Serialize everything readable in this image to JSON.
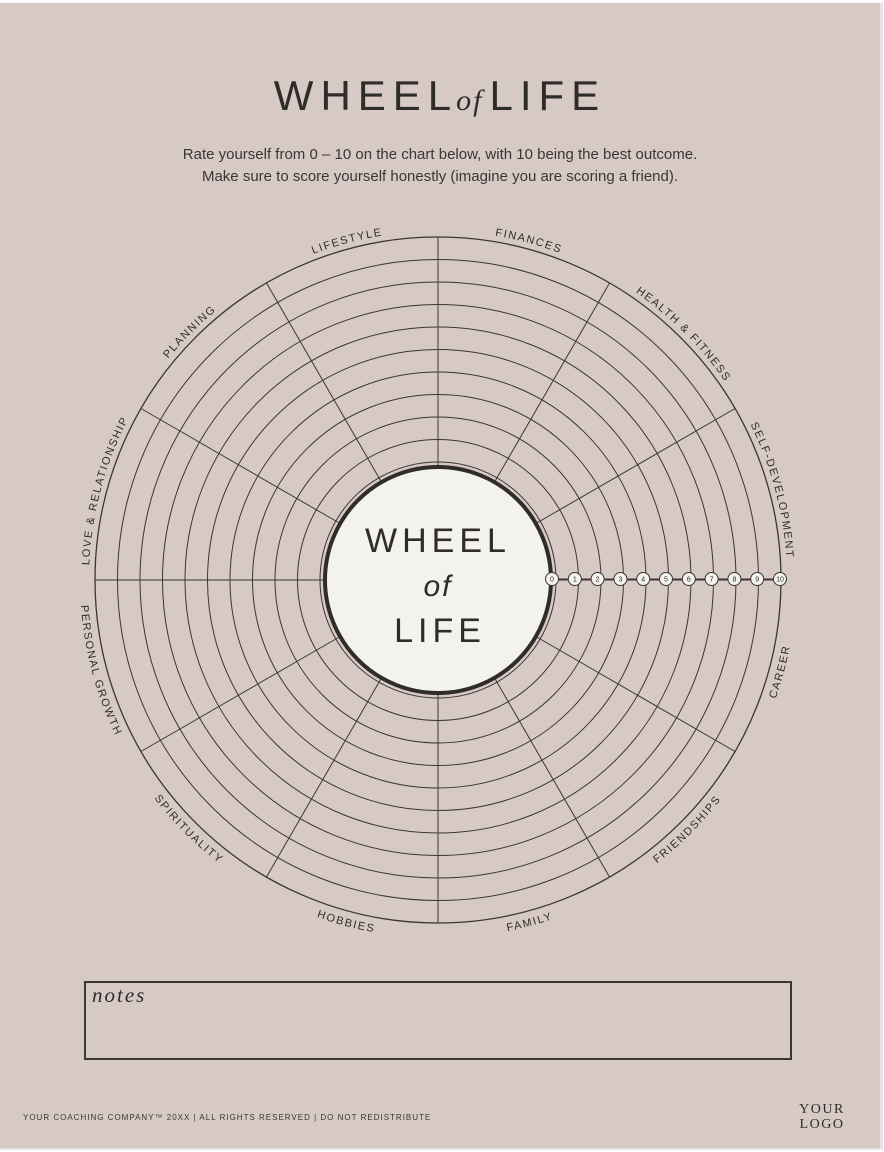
{
  "title": {
    "part1": "WHEEL",
    "of": "of",
    "part2": "LIFE"
  },
  "intro": {
    "line1": "Rate yourself from 0 – 10 on the chart below, with 10 being the best outcome.",
    "line2": "Make sure to score yourself honestly (imagine you are scoring a friend)."
  },
  "wheel": {
    "center": {
      "line1": "WHEEL",
      "line2": "of",
      "line3": "LIFE"
    },
    "categories": [
      "FINANCES",
      "HEALTH & FITNESS",
      "SELF-DEVELOPMENT",
      "CAREER",
      "FRIENDSHIPS",
      "FAMILY",
      "HOBBIES",
      "SPIRITUALITY",
      "PERSONAL GROWTH",
      "LOVE & RELATIONSHIP",
      "PLANNING",
      "LIFESTYLE"
    ],
    "scale": [
      "0",
      "1",
      "2",
      "3",
      "4",
      "5",
      "6",
      "7",
      "8",
      "9",
      "10"
    ]
  },
  "notes": {
    "label": "notes"
  },
  "footer": {
    "text": "YOUR COACHING COMPANY™ 20XX | ALL RIGHTS RESERVED | DO NOT REDISTRIBUTE",
    "logo_line1": "YOUR",
    "logo_line2": "LOGO"
  }
}
